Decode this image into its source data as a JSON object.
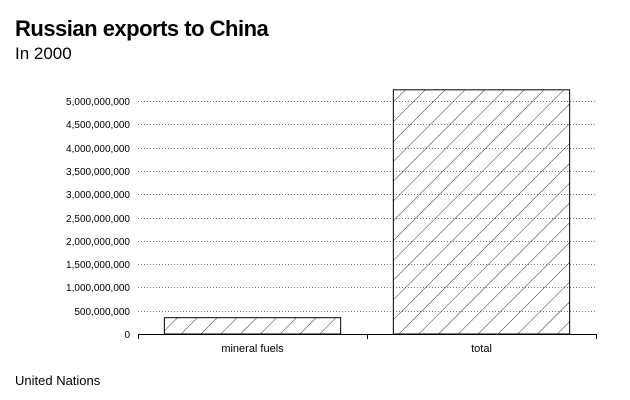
{
  "header": {
    "title": "Russian exports to China",
    "subtitle": "In 2000"
  },
  "footer": {
    "source": "United Nations"
  },
  "chart_data": {
    "type": "bar",
    "categories": [
      "mineral fuels",
      "total"
    ],
    "values": [
      350000000,
      5240000000
    ],
    "ylim": [
      0,
      5000000000
    ],
    "yticks": [
      0,
      500000000,
      1000000000,
      1500000000,
      2000000000,
      2500000000,
      3000000000,
      3500000000,
      4000000000,
      4500000000,
      5000000000
    ],
    "ytick_labels": [
      "0",
      "500,000,000",
      "1,000,000,000",
      "1,500,000,000",
      "2,000,000,000",
      "2,500,000,000",
      "3,000,000,000",
      "3,500,000,000",
      "4,000,000,000",
      "4,500,000,000",
      "5,000,000,000"
    ],
    "grid": true,
    "bar_fill": "hatched",
    "bar_stroke": "#000000",
    "grid_color": "#777777"
  }
}
